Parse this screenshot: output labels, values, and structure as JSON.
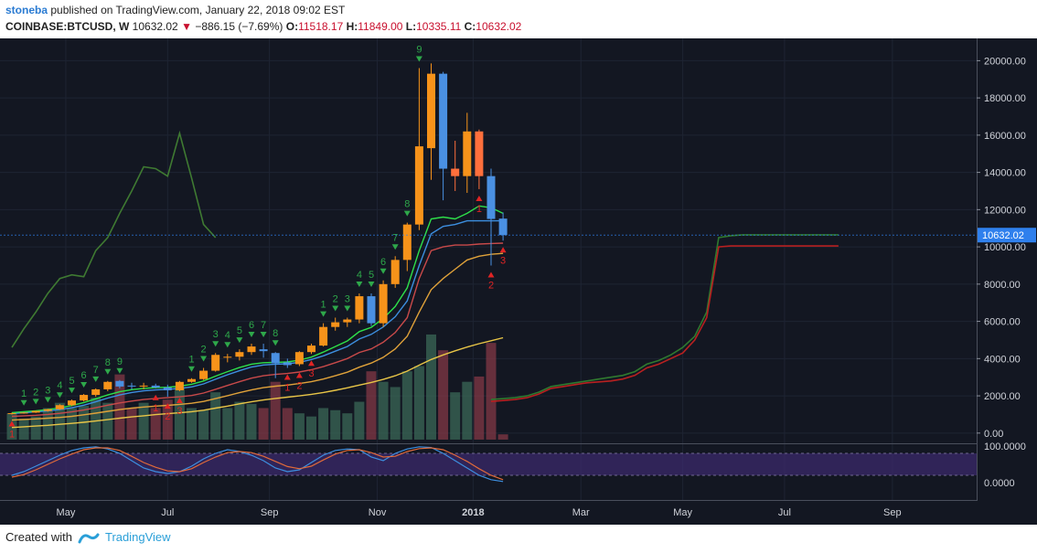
{
  "header": {
    "user": "stoneba",
    "published_text": "published on TradingView.com, January 22, 2018 09:02 EST",
    "symbol": "COINBASE:BTCUSD, W",
    "last": "10632.02",
    "arrow": "▼",
    "change": "−886.15 (−7.69%)",
    "o_label": "O:",
    "o_value": "11518.17",
    "h_label": "H:",
    "h_value": "11849.00",
    "l_label": "L:",
    "l_value": "10335.11",
    "c_label": "C:",
    "c_value": "10632.02"
  },
  "footer": {
    "created_with": "Created with",
    "brand": "TradingView"
  },
  "colors": {
    "background": "#131722",
    "bull": "#f7931a",
    "bear": "#4a90e2",
    "bear_alt": "#ff6f3c",
    "price_badge": "#2f80ed",
    "td_green": "#2ea84a",
    "td_red": "#e02424"
  },
  "chart_data": {
    "type": "candlestick",
    "timeframe": "W",
    "ylim": [
      -500,
      21000
    ],
    "price_ticks": [
      "0.00",
      "2000.00",
      "4000.00",
      "6000.00",
      "8000.00",
      "10000.00",
      "12000.00",
      "14000.00",
      "16000.00",
      "18000.00",
      "20000.00"
    ],
    "price_tick_values": [
      0,
      2000,
      4000,
      6000,
      8000,
      10000,
      12000,
      14000,
      16000,
      18000,
      20000
    ],
    "last_price_label": "10632.02",
    "time_labels": [
      "May",
      "Jul",
      "Sep",
      "Nov",
      "2018",
      "Mar",
      "May",
      "Jul",
      "Sep"
    ],
    "time_label_index": [
      4.5,
      13,
      21.5,
      30.5,
      38.5,
      47.5,
      56,
      64.5,
      73.5
    ],
    "candles": [
      {
        "o": 1040,
        "h": 1100,
        "l": 1000,
        "c": 1070
      },
      {
        "o": 1070,
        "h": 1130,
        "l": 1040,
        "c": 1100
      },
      {
        "o": 1100,
        "h": 1200,
        "l": 1080,
        "c": 1190
      },
      {
        "o": 1190,
        "h": 1300,
        "l": 1150,
        "c": 1280
      },
      {
        "o": 1280,
        "h": 1550,
        "l": 1250,
        "c": 1500
      },
      {
        "o": 1500,
        "h": 1800,
        "l": 1450,
        "c": 1750
      },
      {
        "o": 1750,
        "h": 2100,
        "l": 1700,
        "c": 2050
      },
      {
        "o": 2050,
        "h": 2400,
        "l": 1950,
        "c": 2350
      },
      {
        "o": 2350,
        "h": 2800,
        "l": 2250,
        "c": 2750
      },
      {
        "o": 2800,
        "h": 2850,
        "l": 2400,
        "c": 2500
      },
      {
        "o": 2550,
        "h": 2700,
        "l": 2350,
        "c": 2500
      },
      {
        "o": 2500,
        "h": 2700,
        "l": 2350,
        "c": 2550
      },
      {
        "o": 2550,
        "h": 2650,
        "l": 2400,
        "c": 2450
      },
      {
        "o": 2450,
        "h": 2600,
        "l": 1950,
        "c": 2300
      },
      {
        "o": 2300,
        "h": 2800,
        "l": 2250,
        "c": 2750
      },
      {
        "o": 2750,
        "h": 2950,
        "l": 2700,
        "c": 2900
      },
      {
        "o": 2900,
        "h": 3500,
        "l": 2850,
        "c": 3350
      },
      {
        "o": 3350,
        "h": 4300,
        "l": 3300,
        "c": 4200
      },
      {
        "o": 4050,
        "h": 4250,
        "l": 3800,
        "c": 4100
      },
      {
        "o": 4100,
        "h": 4500,
        "l": 3900,
        "c": 4350
      },
      {
        "o": 4350,
        "h": 4800,
        "l": 4200,
        "c": 4650
      },
      {
        "o": 4500,
        "h": 4800,
        "l": 4050,
        "c": 4400
      },
      {
        "o": 4300,
        "h": 4350,
        "l": 2950,
        "c": 3750
      },
      {
        "o": 3800,
        "h": 4000,
        "l": 3500,
        "c": 3650
      },
      {
        "o": 3700,
        "h": 4400,
        "l": 3600,
        "c": 4350
      },
      {
        "o": 4350,
        "h": 4800,
        "l": 4250,
        "c": 4700
      },
      {
        "o": 4700,
        "h": 5900,
        "l": 4650,
        "c": 5700
      },
      {
        "o": 5700,
        "h": 6200,
        "l": 5500,
        "c": 5950
      },
      {
        "o": 5950,
        "h": 6200,
        "l": 5700,
        "c": 6100
      },
      {
        "o": 6100,
        "h": 7500,
        "l": 5900,
        "c": 7350
      },
      {
        "o": 7350,
        "h": 7500,
        "l": 5750,
        "c": 5900
      },
      {
        "o": 5900,
        "h": 8200,
        "l": 5700,
        "c": 8000
      },
      {
        "o": 8000,
        "h": 9500,
        "l": 7800,
        "c": 9300
      },
      {
        "o": 9300,
        "h": 11300,
        "l": 8700,
        "c": 11200
      },
      {
        "o": 11200,
        "h": 19600,
        "l": 10900,
        "c": 15400
      },
      {
        "o": 15300,
        "h": 19850,
        "l": 13600,
        "c": 19300
      },
      {
        "o": 19300,
        "h": 19400,
        "l": 12500,
        "c": 14200
      },
      {
        "o": 14200,
        "h": 15700,
        "l": 13000,
        "c": 13800
      },
      {
        "o": 13800,
        "h": 17200,
        "l": 12900,
        "c": 16200
      },
      {
        "o": 16200,
        "h": 16300,
        "l": 13100,
        "c": 13800
      },
      {
        "o": 13800,
        "h": 14200,
        "l": 9000,
        "c": 11500
      },
      {
        "o": 11518,
        "h": 11849,
        "l": 10335,
        "c": 10632
      }
    ],
    "ma_green": [
      1100,
      1150,
      1200,
      1260,
      1350,
      1480,
      1640,
      1840,
      2050,
      2220,
      2330,
      2400,
      2440,
      2460,
      2520,
      2620,
      2800,
      3060,
      3300,
      3520,
      3700,
      3780,
      3800,
      3820,
      3920,
      4080,
      4350,
      4650,
      4950,
      5450,
      5680,
      6150,
      6800,
      7800,
      9800,
      11500,
      11600,
      11500,
      11800,
      12200,
      12100,
      11800
    ],
    "ma_blue": [
      1050,
      1090,
      1140,
      1190,
      1260,
      1360,
      1500,
      1680,
      1880,
      2050,
      2180,
      2270,
      2320,
      2350,
      2400,
      2480,
      2640,
      2890,
      3130,
      3350,
      3550,
      3660,
      3700,
      3720,
      3800,
      3950,
      4150,
      4400,
      4650,
      5050,
      5300,
      5700,
      6250,
      7100,
      9000,
      10700,
      11100,
      11200,
      11400,
      11400,
      11400,
      11400
    ],
    "ma_red": [
      900,
      930,
      960,
      1000,
      1060,
      1140,
      1240,
      1360,
      1500,
      1620,
      1720,
      1800,
      1860,
      1900,
      1950,
      2020,
      2150,
      2350,
      2560,
      2760,
      2950,
      3080,
      3150,
      3200,
      3280,
      3400,
      3570,
      3780,
      4000,
      4330,
      4520,
      4880,
      5400,
      6200,
      8300,
      9800,
      10000,
      10100,
      10100,
      10150,
      10180,
      10200
    ],
    "ma_orange": [
      700,
      730,
      760,
      800,
      840,
      900,
      980,
      1070,
      1170,
      1260,
      1340,
      1400,
      1450,
      1490,
      1540,
      1600,
      1700,
      1850,
      2010,
      2170,
      2320,
      2440,
      2520,
      2580,
      2660,
      2760,
      2900,
      3080,
      3270,
      3540,
      3760,
      4070,
      4520,
      5200,
      6500,
      7700,
      8300,
      8800,
      9300,
      9500,
      9600,
      9650
    ],
    "ma_yellow": [
      300,
      340,
      380,
      420,
      470,
      520,
      580,
      650,
      720,
      800,
      870,
      930,
      990,
      1040,
      1090,
      1150,
      1230,
      1340,
      1450,
      1570,
      1680,
      1780,
      1860,
      1930,
      2000,
      2080,
      2180,
      2300,
      2430,
      2580,
      2720,
      2880,
      3080,
      3330,
      3650,
      3950,
      4200,
      4420,
      4620,
      4800,
      4960,
      5120
    ],
    "green_projection": [
      4600,
      5600,
      6500,
      7500,
      8300,
      8500,
      8400,
      9800,
      10500,
      11800,
      13000,
      14300,
      14200,
      13800,
      16100,
      13700,
      11200,
      10500
    ],
    "volume": [
      {
        "v": 0.25,
        "up": true
      },
      {
        "v": 0.2,
        "up": true
      },
      {
        "v": 0.22,
        "up": true
      },
      {
        "v": 0.3,
        "up": true
      },
      {
        "v": 0.35,
        "up": true
      },
      {
        "v": 0.3,
        "up": true
      },
      {
        "v": 0.32,
        "up": true
      },
      {
        "v": 0.4,
        "up": true
      },
      {
        "v": 0.35,
        "up": true
      },
      {
        "v": 0.62,
        "up": false
      },
      {
        "v": 0.3,
        "up": false
      },
      {
        "v": 0.35,
        "up": true
      },
      {
        "v": 0.3,
        "up": false
      },
      {
        "v": 0.38,
        "up": false
      },
      {
        "v": 0.5,
        "up": true
      },
      {
        "v": 0.3,
        "up": true
      },
      {
        "v": 0.28,
        "up": true
      },
      {
        "v": 0.45,
        "up": true
      },
      {
        "v": 0.3,
        "up": true
      },
      {
        "v": 0.36,
        "up": true
      },
      {
        "v": 0.34,
        "up": true
      },
      {
        "v": 0.3,
        "up": false
      },
      {
        "v": 0.55,
        "up": false
      },
      {
        "v": 0.3,
        "up": false
      },
      {
        "v": 0.25,
        "up": true
      },
      {
        "v": 0.22,
        "up": true
      },
      {
        "v": 0.3,
        "up": true
      },
      {
        "v": 0.28,
        "up": true
      },
      {
        "v": 0.25,
        "up": true
      },
      {
        "v": 0.36,
        "up": true
      },
      {
        "v": 0.65,
        "up": false
      },
      {
        "v": 0.55,
        "up": true
      },
      {
        "v": 0.5,
        "up": true
      },
      {
        "v": 0.65,
        "up": true
      },
      {
        "v": 0.7,
        "up": true
      },
      {
        "v": 1.0,
        "up": true
      },
      {
        "v": 0.85,
        "up": false
      },
      {
        "v": 0.45,
        "up": true
      },
      {
        "v": 0.55,
        "up": true
      },
      {
        "v": 0.6,
        "up": false
      },
      {
        "v": 0.92,
        "up": false
      },
      {
        "v": 0.05,
        "up": false
      }
    ],
    "td_green": [
      {
        "i": 1,
        "t": "1"
      },
      {
        "i": 2,
        "t": "2"
      },
      {
        "i": 3,
        "t": "3"
      },
      {
        "i": 4,
        "t": "4"
      },
      {
        "i": 5,
        "t": "5"
      },
      {
        "i": 6,
        "t": "6"
      },
      {
        "i": 7,
        "t": "7"
      },
      {
        "i": 8,
        "t": "8"
      },
      {
        "i": 9,
        "t": "9"
      },
      {
        "i": 15,
        "t": "1"
      },
      {
        "i": 16,
        "t": "2"
      },
      {
        "i": 17,
        "t": "3"
      },
      {
        "i": 18,
        "t": "4"
      },
      {
        "i": 19,
        "t": "5"
      },
      {
        "i": 20,
        "t": "6"
      },
      {
        "i": 21,
        "t": "7"
      },
      {
        "i": 22,
        "t": "8"
      },
      {
        "i": 26,
        "t": "1"
      },
      {
        "i": 27,
        "t": "2"
      },
      {
        "i": 28,
        "t": "3"
      },
      {
        "i": 29,
        "t": "4"
      },
      {
        "i": 30,
        "t": "5"
      },
      {
        "i": 31,
        "t": "6"
      },
      {
        "i": 32,
        "t": "7"
      },
      {
        "i": 33,
        "t": "8"
      },
      {
        "i": 34,
        "t": "9"
      }
    ],
    "td_red": [
      {
        "i": 0,
        "t": "1"
      },
      {
        "i": 12,
        "t": "1"
      },
      {
        "i": 13,
        "t": "2"
      },
      {
        "i": 14,
        "t": "3"
      },
      {
        "i": 23,
        "t": "1"
      },
      {
        "i": 24,
        "t": "2"
      },
      {
        "i": 25,
        "t": "3"
      },
      {
        "i": 39,
        "t": "1"
      },
      {
        "i": 40,
        "t": "2"
      },
      {
        "i": 41,
        "t": "3"
      }
    ],
    "stoch_ylim": [
      0,
      100
    ],
    "stoch_ticks": [
      "100.0000",
      "0.0000"
    ],
    "stoch_tick_values": [
      100,
      0
    ],
    "stoch_k": [
      20,
      30,
      45,
      60,
      75,
      88,
      95,
      98,
      92,
      80,
      60,
      40,
      30,
      25,
      30,
      45,
      65,
      80,
      90,
      85,
      75,
      60,
      40,
      30,
      35,
      55,
      75,
      88,
      92,
      90,
      70,
      60,
      80,
      92,
      98,
      96,
      80,
      60,
      40,
      20,
      8,
      3
    ],
    "stoch_d": [
      15,
      22,
      35,
      50,
      65,
      78,
      90,
      95,
      95,
      88,
      72,
      55,
      42,
      32,
      30,
      38,
      55,
      70,
      82,
      85,
      82,
      72,
      58,
      44,
      38,
      45,
      62,
      78,
      88,
      90,
      82,
      70,
      72,
      85,
      93,
      95,
      90,
      75,
      58,
      38,
      20,
      8
    ]
  }
}
